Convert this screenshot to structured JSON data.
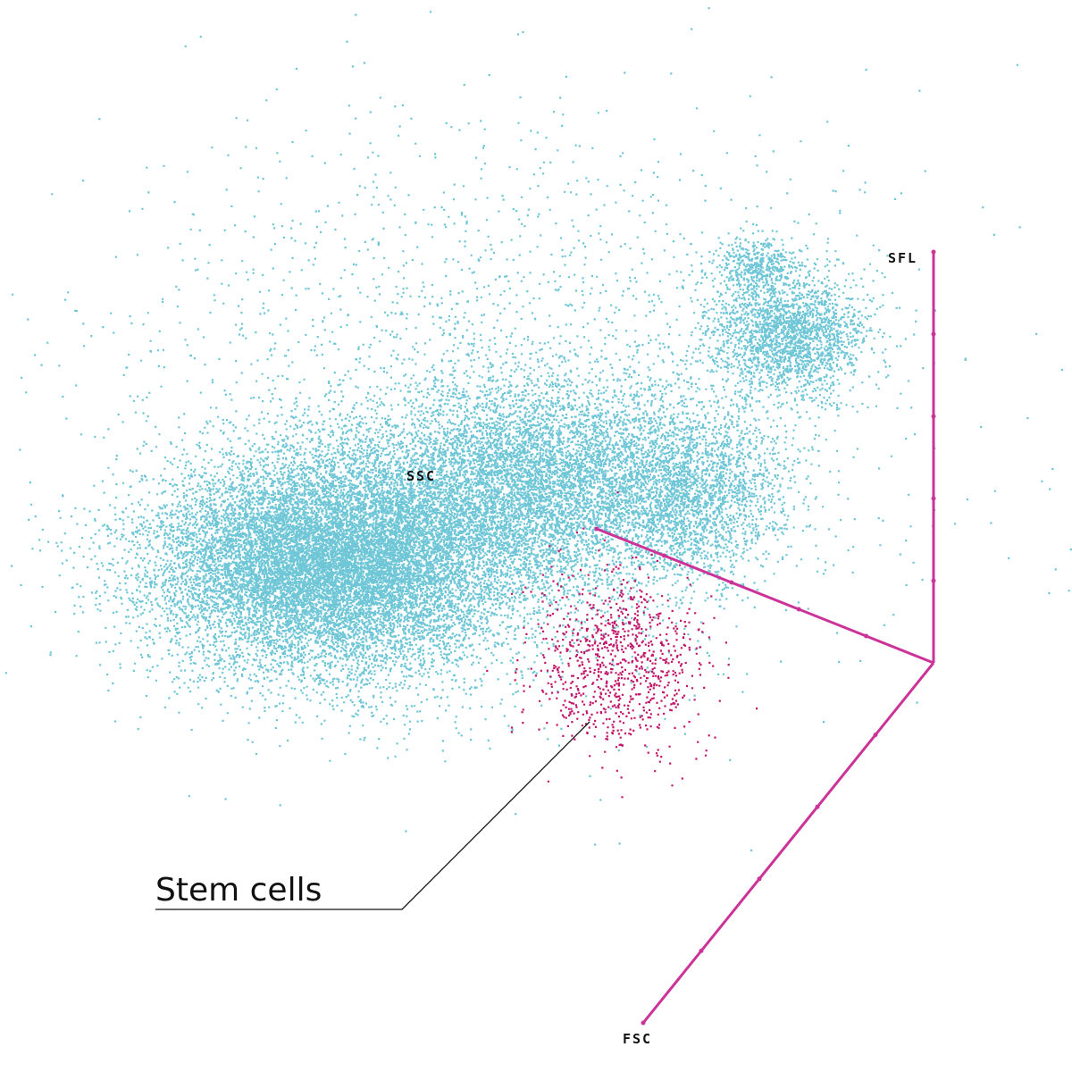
{
  "chart_data": {
    "type": "scatter",
    "projection": "3d",
    "axes": {
      "x": "FSC",
      "y": "SSC",
      "z": "SFL"
    },
    "grid": false,
    "legend": "none",
    "colors": {
      "main_population": "#6ec6d6",
      "stem_cells": "#c2186b",
      "axis": "#cc3399",
      "leader": "#111111"
    },
    "series": [
      {
        "role": "main",
        "clusters": [
          {
            "cx": 330,
            "cy": 630,
            "sx": 90,
            "sy": 60,
            "n": 9000
          },
          {
            "cx": 440,
            "cy": 620,
            "sx": 80,
            "sy": 70,
            "n": 6000
          },
          {
            "cx": 600,
            "cy": 540,
            "sx": 80,
            "sy": 60,
            "n": 5500
          },
          {
            "cx": 770,
            "cy": 550,
            "sx": 55,
            "sy": 50,
            "n": 2500
          },
          {
            "cx": 880,
            "cy": 370,
            "sx": 45,
            "sy": 35,
            "n": 2200
          },
          {
            "cx": 845,
            "cy": 295,
            "sx": 22,
            "sy": 15,
            "n": 400
          },
          {
            "cx": 560,
            "cy": 450,
            "sx": 220,
            "sy": 160,
            "n": 2500
          }
        ]
      },
      {
        "role": "stem",
        "clusters": [
          {
            "cx": 690,
            "cy": 740,
            "sx": 45,
            "sy": 50,
            "n": 900
          }
        ]
      }
    ],
    "annotations": [
      {
        "text": "Stem cells"
      }
    ],
    "axis_labels": {
      "z": "SFL",
      "y": "SSC",
      "x": "FSC"
    }
  }
}
